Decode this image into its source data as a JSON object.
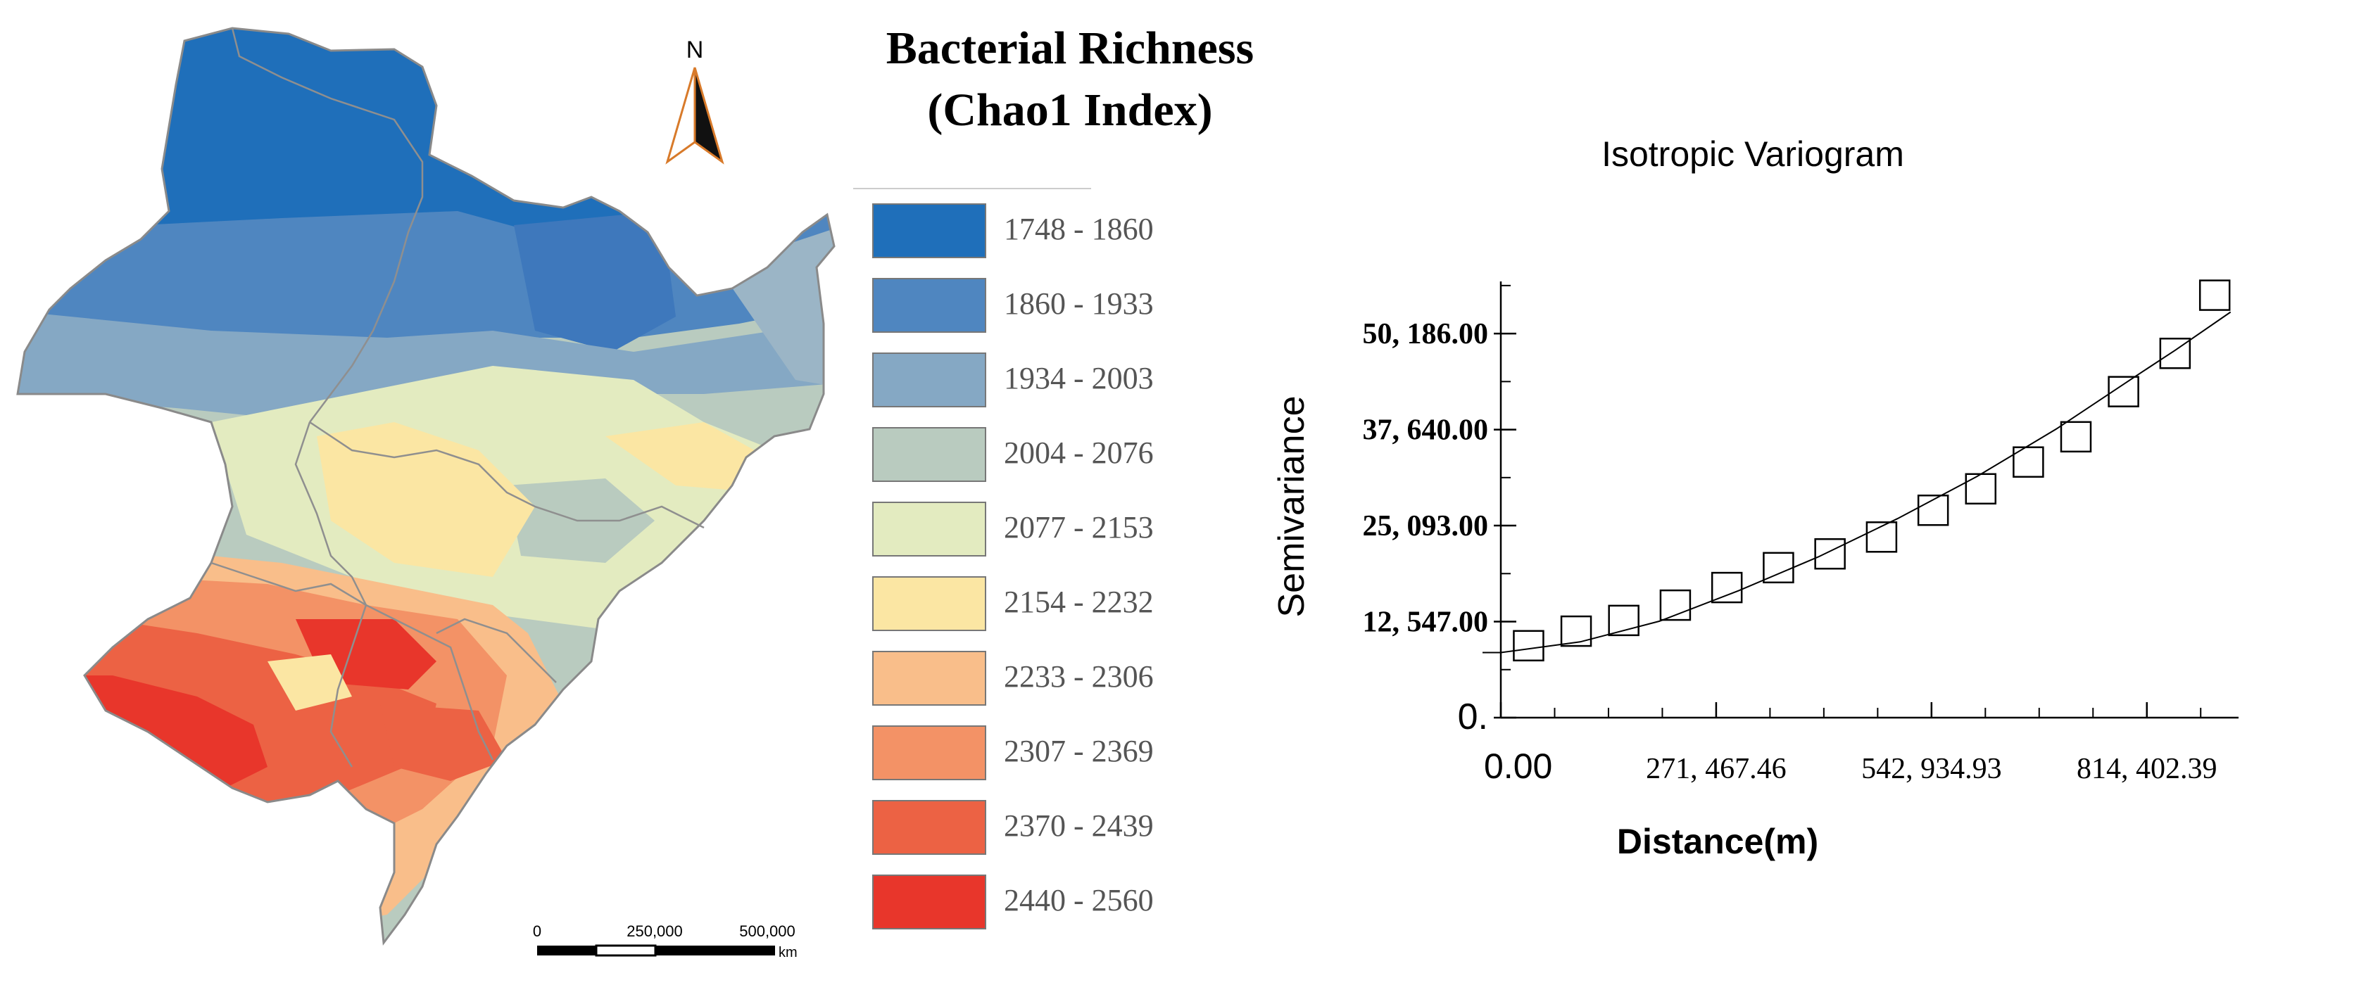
{
  "map": {
    "north_label": "N",
    "legend": {
      "title_line1": "Bacterial Richness",
      "title_line2": "(Chao1 Index)",
      "classes": [
        {
          "label": "1748  -  1860",
          "color": "#1f6fba"
        },
        {
          "label": "1860  -  1933",
          "color": "#4f86c0"
        },
        {
          "label": "1934  -  2003",
          "color": "#85a8c4"
        },
        {
          "label": "2004  -  2076",
          "color": "#b9cbbf"
        },
        {
          "label": "2077  -  2153",
          "color": "#e3ebc0"
        },
        {
          "label": "2154  -  2232",
          "color": "#fbe6a3"
        },
        {
          "label": "2233  -  2306",
          "color": "#f9be8a"
        },
        {
          "label": "2307  -  2369",
          "color": "#f39266"
        },
        {
          "label": "2370  -  2439",
          "color": "#ec6244"
        },
        {
          "label": "2440  -  2560",
          "color": "#e8362b"
        }
      ]
    },
    "scalebar": {
      "labels": [
        "0",
        "250,000",
        "500,000"
      ],
      "unit": "km"
    }
  },
  "chart_data": {
    "type": "scatter",
    "title": "Isotropic Variogram",
    "xlabel": "Distance(m)",
    "ylabel": "Semivariance",
    "xlim": [
      0,
      930000
    ],
    "ylim": [
      0,
      57000
    ],
    "x_ticks": [
      {
        "value": 0,
        "label": "0.00"
      },
      {
        "value": 271467.46,
        "label": "271, 467.46"
      },
      {
        "value": 542934.93,
        "label": "542, 934.93"
      },
      {
        "value": 814402.39,
        "label": "814, 402.39"
      }
    ],
    "y_ticks": [
      {
        "value": 0,
        "label": "0."
      },
      {
        "value": 12547,
        "label": "12, 547.00"
      },
      {
        "value": 25093,
        "label": "25, 093.00"
      },
      {
        "value": 37640,
        "label": "37, 640.00"
      },
      {
        "value": 50186,
        "label": "50, 186.00"
      }
    ],
    "points": [
      {
        "x": 35000,
        "y": 9400
      },
      {
        "x": 95000,
        "y": 11300
      },
      {
        "x": 155000,
        "y": 12700
      },
      {
        "x": 220000,
        "y": 14700
      },
      {
        "x": 285000,
        "y": 17000
      },
      {
        "x": 350000,
        "y": 19600
      },
      {
        "x": 415000,
        "y": 21400
      },
      {
        "x": 480000,
        "y": 23600
      },
      {
        "x": 545000,
        "y": 27100
      },
      {
        "x": 605000,
        "y": 29900
      },
      {
        "x": 665000,
        "y": 33400
      },
      {
        "x": 725000,
        "y": 36700
      },
      {
        "x": 785000,
        "y": 42600
      },
      {
        "x": 850000,
        "y": 47600
      },
      {
        "x": 900000,
        "y": 55200
      }
    ],
    "model_curve": [
      {
        "x": 0,
        "y": 8500
      },
      {
        "x": 100000,
        "y": 9900
      },
      {
        "x": 200000,
        "y": 12600
      },
      {
        "x": 300000,
        "y": 16600
      },
      {
        "x": 400000,
        "y": 21000
      },
      {
        "x": 500000,
        "y": 26000
      },
      {
        "x": 600000,
        "y": 31500
      },
      {
        "x": 700000,
        "y": 37700
      },
      {
        "x": 800000,
        "y": 44600
      },
      {
        "x": 850000,
        "y": 48000
      },
      {
        "x": 920000,
        "y": 53000
      }
    ]
  }
}
